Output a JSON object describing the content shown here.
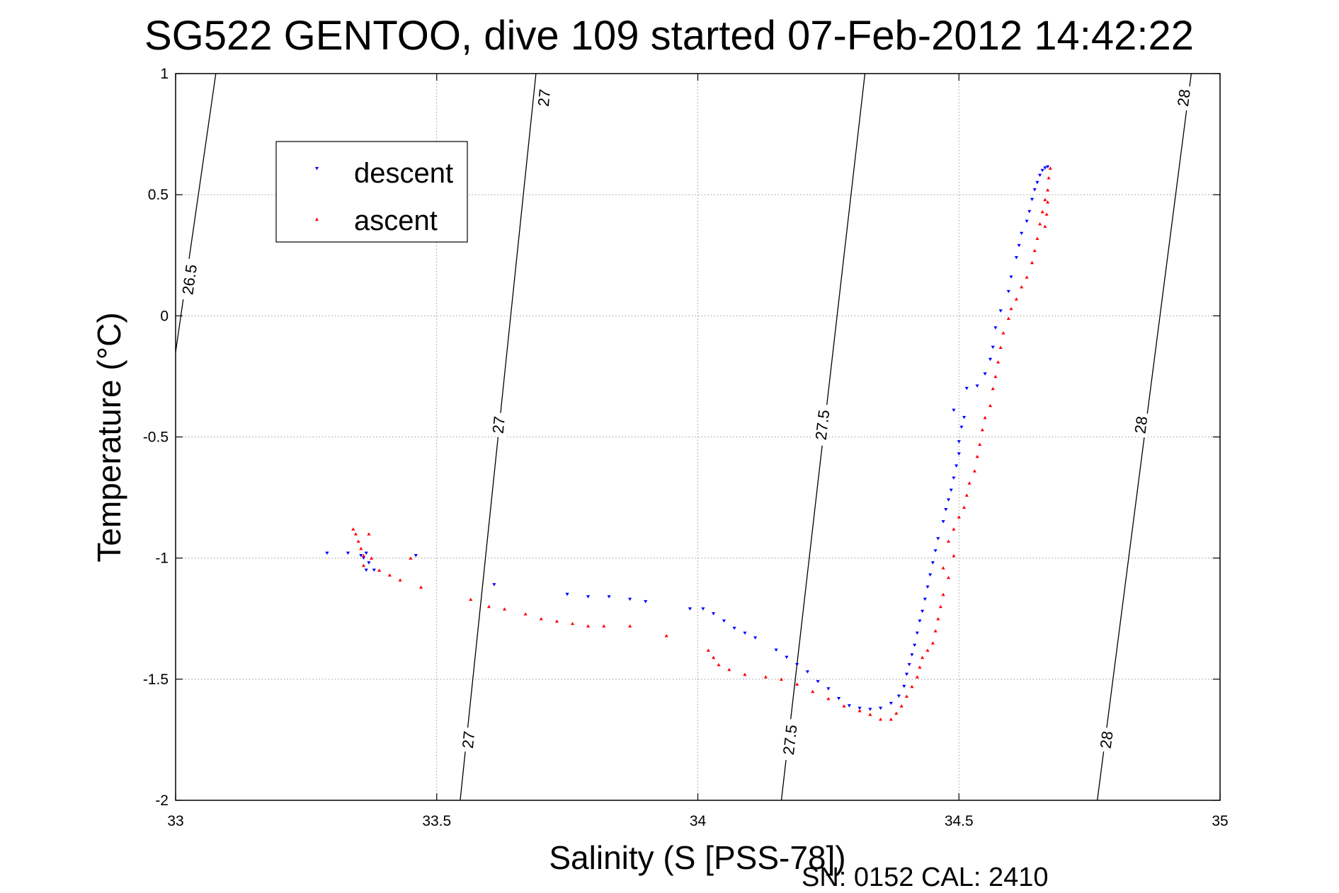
{
  "chart_data": {
    "type": "scatter",
    "title": "SG522 GENTOO, dive 109 started 07-Feb-2012 14:42:22",
    "xlabel": "Salinity (S [PSS-78])",
    "ylabel": "Temperature (°C)",
    "footer": "SN: 0152  CAL: 2410",
    "xlim": [
      33,
      35
    ],
    "ylim": [
      -2,
      1
    ],
    "xticks": [
      33,
      33.5,
      34,
      34.5,
      35
    ],
    "xtick_labels": [
      "33",
      "33.5",
      "34",
      "34.5",
      "35"
    ],
    "yticks": [
      -2,
      -1.5,
      -1,
      -0.5,
      0,
      0.5,
      1
    ],
    "ytick_labels": [
      "-2",
      "-1.5",
      "-1",
      "-0.5",
      "0",
      "0.5",
      "1"
    ],
    "grid": true,
    "legend_position": "upper-left",
    "colors": {
      "descent": "#0000ff",
      "ascent": "#ff0000",
      "axis": "#000000",
      "grid": "#999999"
    },
    "density_contours": [
      {
        "sigma": "26.5",
        "points": [
          [
            33.0,
            -0.15
          ],
          [
            33.077,
            1.0
          ]
        ],
        "labels": [
          {
            "text": "26.5",
            "at": [
              33.026,
              0.15
            ]
          }
        ]
      },
      {
        "sigma": "27",
        "points": [
          [
            33.545,
            -2.0
          ],
          [
            33.69,
            1.0
          ]
        ],
        "labels": [
          {
            "text": "27",
            "at": [
              33.56,
              -1.75
            ]
          },
          {
            "text": "27",
            "at": [
              33.618,
              -0.45
            ]
          },
          {
            "text": "27",
            "at": [
              33.705,
              0.9
            ]
          }
        ]
      },
      {
        "sigma": "27.5",
        "points": [
          [
            34.16,
            -2.0
          ],
          [
            34.32,
            1.0
          ]
        ],
        "labels": [
          {
            "text": "27.5",
            "at": [
              34.176,
              -1.75
            ]
          },
          {
            "text": "27.5",
            "at": [
              34.238,
              -0.45
            ]
          }
        ]
      },
      {
        "sigma": "28",
        "points": [
          [
            34.765,
            -2.0
          ],
          [
            34.945,
            1.0
          ]
        ],
        "labels": [
          {
            "text": "28",
            "at": [
              34.782,
              -1.75
            ]
          },
          {
            "text": "28",
            "at": [
              34.848,
              -0.45
            ]
          },
          {
            "text": "28",
            "at": [
              34.93,
              0.9
            ]
          }
        ]
      }
    ],
    "series": [
      {
        "name": "descent",
        "marker": "triangle-down",
        "color": "#0000ff",
        "points": [
          [
            33.29,
            -0.98
          ],
          [
            33.33,
            -0.98
          ],
          [
            33.355,
            -0.99
          ],
          [
            33.36,
            -1.0
          ],
          [
            33.365,
            -0.98
          ],
          [
            33.37,
            -1.02
          ],
          [
            33.365,
            -1.05
          ],
          [
            33.38,
            -1.05
          ],
          [
            33.46,
            -0.99
          ],
          [
            33.61,
            -1.11
          ],
          [
            33.75,
            -1.15
          ],
          [
            33.79,
            -1.16
          ],
          [
            33.83,
            -1.16
          ],
          [
            33.87,
            -1.17
          ],
          [
            33.9,
            -1.18
          ],
          [
            33.985,
            -1.21
          ],
          [
            34.01,
            -1.21
          ],
          [
            34.03,
            -1.23
          ],
          [
            34.05,
            -1.26
          ],
          [
            34.07,
            -1.29
          ],
          [
            34.09,
            -1.31
          ],
          [
            34.11,
            -1.33
          ],
          [
            34.15,
            -1.38
          ],
          [
            34.17,
            -1.41
          ],
          [
            34.19,
            -1.44
          ],
          [
            34.21,
            -1.47
          ],
          [
            34.23,
            -1.51
          ],
          [
            34.25,
            -1.54
          ],
          [
            34.27,
            -1.58
          ],
          [
            34.29,
            -1.61
          ],
          [
            34.31,
            -1.62
          ],
          [
            34.33,
            -1.625
          ],
          [
            34.35,
            -1.62
          ],
          [
            34.37,
            -1.6
          ],
          [
            34.385,
            -1.57
          ],
          [
            34.395,
            -1.53
          ],
          [
            34.4,
            -1.48
          ],
          [
            34.405,
            -1.44
          ],
          [
            34.41,
            -1.4
          ],
          [
            34.415,
            -1.36
          ],
          [
            34.42,
            -1.31
          ],
          [
            34.425,
            -1.26
          ],
          [
            34.43,
            -1.22
          ],
          [
            34.435,
            -1.17
          ],
          [
            34.44,
            -1.12
          ],
          [
            34.445,
            -1.07
          ],
          [
            34.45,
            -1.02
          ],
          [
            34.455,
            -0.97
          ],
          [
            34.46,
            -0.92
          ],
          [
            34.47,
            -0.85
          ],
          [
            34.475,
            -0.8
          ],
          [
            34.48,
            -0.76
          ],
          [
            34.485,
            -0.72
          ],
          [
            34.49,
            -0.67
          ],
          [
            34.495,
            -0.62
          ],
          [
            34.5,
            -0.57
          ],
          [
            34.5,
            -0.52
          ],
          [
            34.49,
            -0.39
          ],
          [
            34.505,
            -0.46
          ],
          [
            34.51,
            -0.42
          ],
          [
            34.515,
            -0.3
          ],
          [
            34.535,
            -0.29
          ],
          [
            34.55,
            -0.24
          ],
          [
            34.56,
            -0.18
          ],
          [
            34.565,
            -0.13
          ],
          [
            34.57,
            -0.05
          ],
          [
            34.58,
            0.02
          ],
          [
            34.595,
            0.1
          ],
          [
            34.6,
            0.16
          ],
          [
            34.61,
            0.24
          ],
          [
            34.615,
            0.29
          ],
          [
            34.62,
            0.34
          ],
          [
            34.63,
            0.39
          ],
          [
            34.635,
            0.43
          ],
          [
            34.64,
            0.48
          ],
          [
            34.645,
            0.52
          ],
          [
            34.65,
            0.55
          ],
          [
            34.655,
            0.58
          ],
          [
            34.66,
            0.6
          ],
          [
            34.665,
            0.61
          ],
          [
            34.67,
            0.615
          ]
        ]
      },
      {
        "name": "ascent",
        "marker": "triangle-up",
        "color": "#ff0000",
        "points": [
          [
            33.34,
            -0.88
          ],
          [
            33.345,
            -0.9
          ],
          [
            33.35,
            -0.93
          ],
          [
            33.355,
            -0.96
          ],
          [
            33.36,
            -0.99
          ],
          [
            33.36,
            -1.03
          ],
          [
            33.37,
            -0.9
          ],
          [
            33.375,
            -1.0
          ],
          [
            33.39,
            -1.05
          ],
          [
            33.41,
            -1.07
          ],
          [
            33.43,
            -1.09
          ],
          [
            33.45,
            -1.0
          ],
          [
            33.47,
            -1.12
          ],
          [
            33.565,
            -1.17
          ],
          [
            33.6,
            -1.2
          ],
          [
            33.63,
            -1.21
          ],
          [
            33.67,
            -1.23
          ],
          [
            33.7,
            -1.25
          ],
          [
            33.73,
            -1.26
          ],
          [
            33.76,
            -1.27
          ],
          [
            33.79,
            -1.28
          ],
          [
            33.82,
            -1.28
          ],
          [
            33.87,
            -1.28
          ],
          [
            33.94,
            -1.32
          ],
          [
            34.02,
            -1.38
          ],
          [
            34.03,
            -1.41
          ],
          [
            34.04,
            -1.44
          ],
          [
            34.06,
            -1.46
          ],
          [
            34.09,
            -1.48
          ],
          [
            34.13,
            -1.49
          ],
          [
            34.16,
            -1.5
          ],
          [
            34.19,
            -1.52
          ],
          [
            34.22,
            -1.55
          ],
          [
            34.25,
            -1.58
          ],
          [
            34.28,
            -1.61
          ],
          [
            34.31,
            -1.63
          ],
          [
            34.33,
            -1.645
          ],
          [
            34.35,
            -1.665
          ],
          [
            34.37,
            -1.665
          ],
          [
            34.38,
            -1.64
          ],
          [
            34.39,
            -1.61
          ],
          [
            34.4,
            -1.57
          ],
          [
            34.41,
            -1.53
          ],
          [
            34.42,
            -1.49
          ],
          [
            34.425,
            -1.45
          ],
          [
            34.43,
            -1.41
          ],
          [
            34.44,
            -1.38
          ],
          [
            34.45,
            -1.35
          ],
          [
            34.455,
            -1.3
          ],
          [
            34.46,
            -1.25
          ],
          [
            34.465,
            -1.2
          ],
          [
            34.47,
            -1.15
          ],
          [
            34.48,
            -1.08
          ],
          [
            34.47,
            -1.04
          ],
          [
            34.49,
            -0.99
          ],
          [
            34.48,
            -0.93
          ],
          [
            34.49,
            -0.88
          ],
          [
            34.5,
            -0.83
          ],
          [
            34.51,
            -0.79
          ],
          [
            34.515,
            -0.74
          ],
          [
            34.52,
            -0.69
          ],
          [
            34.53,
            -0.64
          ],
          [
            34.535,
            -0.58
          ],
          [
            34.54,
            -0.53
          ],
          [
            34.545,
            -0.47
          ],
          [
            34.55,
            -0.42
          ],
          [
            34.56,
            -0.37
          ],
          [
            34.565,
            -0.3
          ],
          [
            34.57,
            -0.25
          ],
          [
            34.575,
            -0.19
          ],
          [
            34.58,
            -0.13
          ],
          [
            34.585,
            -0.07
          ],
          [
            34.595,
            -0.01
          ],
          [
            34.6,
            0.03
          ],
          [
            34.61,
            0.07
          ],
          [
            34.62,
            0.12
          ],
          [
            34.63,
            0.16
          ],
          [
            34.64,
            0.22
          ],
          [
            34.645,
            0.27
          ],
          [
            34.65,
            0.32
          ],
          [
            34.655,
            0.38
          ],
          [
            34.66,
            0.43
          ],
          [
            34.665,
            0.48
          ],
          [
            34.67,
            0.52
          ],
          [
            34.672,
            0.57
          ],
          [
            34.675,
            0.61
          ],
          [
            34.665,
            0.37
          ],
          [
            34.668,
            0.42
          ],
          [
            34.67,
            0.47
          ]
        ]
      }
    ]
  }
}
